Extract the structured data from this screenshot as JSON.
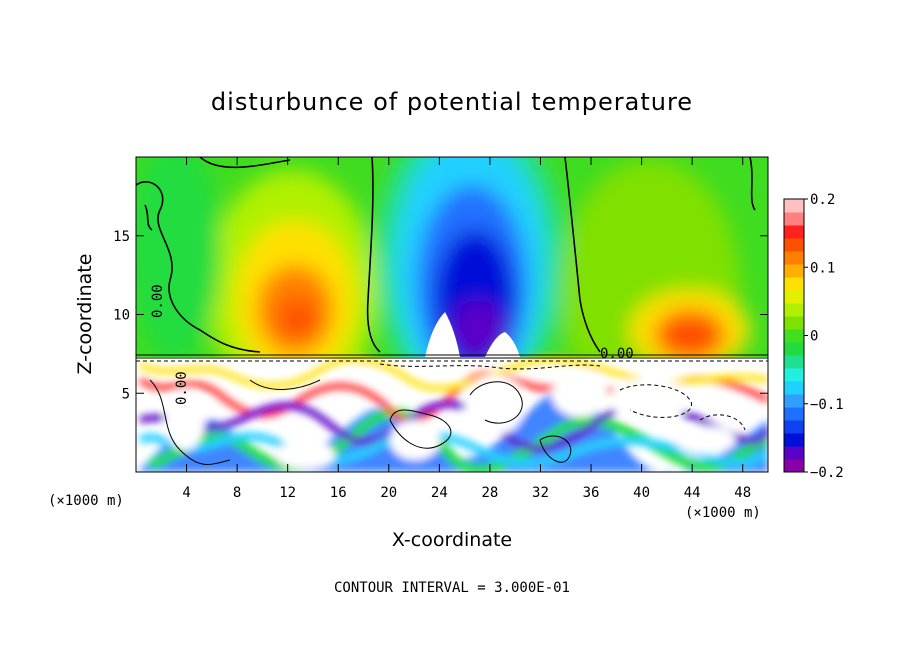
{
  "chart_data": {
    "type": "heatmap",
    "title": "disturbunce of potential temperature",
    "xlabel": "X-coordinate",
    "ylabel": "Z-coordinate",
    "x_unit_left": "(×1000 m)",
    "x_unit_right": "(×1000 m)",
    "xlim": [
      0,
      50
    ],
    "ylim": [
      0,
      20
    ],
    "xticks": [
      "4",
      "8",
      "12",
      "16",
      "20",
      "24",
      "28",
      "32",
      "36",
      "40",
      "44",
      "48"
    ],
    "xtick_values": [
      4,
      8,
      12,
      16,
      20,
      24,
      28,
      32,
      36,
      40,
      44,
      48
    ],
    "yticks": [
      "5",
      "10",
      "15"
    ],
    "ytick_values": [
      5,
      10,
      15
    ],
    "contour_interval_text": "CONTOUR INTERVAL = 3.000E-01",
    "contour_labels": [
      "0.00",
      "0.00",
      "0.00"
    ],
    "colorbar": {
      "min": -0.2,
      "max": 0.2,
      "ticks": [
        "0.2",
        "0.1",
        "0",
        "−0.1",
        "−0.2"
      ],
      "tick_values": [
        0.2,
        0.1,
        0,
        -0.1,
        -0.2
      ],
      "colors": [
        "#8a00a8",
        "#5a00c8",
        "#0010d8",
        "#1040f0",
        "#2070ff",
        "#30a0ff",
        "#20d0ff",
        "#20f0e0",
        "#20e090",
        "#20dc40",
        "#40e020",
        "#80e000",
        "#b0f000",
        "#e0f000",
        "#ffe000",
        "#ffb000",
        "#ff8000",
        "#ff5000",
        "#ff2020",
        "#ff8080",
        "#ffc0c0"
      ]
    }
  }
}
